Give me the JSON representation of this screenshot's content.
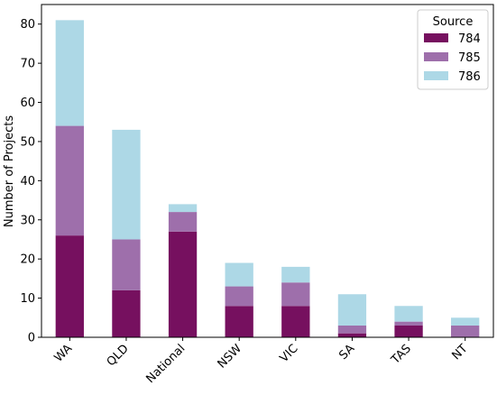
{
  "chart_data": {
    "type": "bar",
    "stacked": true,
    "categories": [
      "WA",
      "QLD",
      "National",
      "NSW",
      "VIC",
      "SA",
      "TAS",
      "NT"
    ],
    "series": [
      {
        "name": "784",
        "color": "#76105f",
        "values": [
          26,
          12,
          27,
          8,
          8,
          1,
          3,
          0
        ]
      },
      {
        "name": "785",
        "color": "#9e6fab",
        "values": [
          28,
          13,
          5,
          5,
          6,
          2,
          1,
          3
        ]
      },
      {
        "name": "786",
        "color": "#add8e6",
        "values": [
          27,
          28,
          2,
          6,
          4,
          8,
          4,
          2
        ]
      }
    ],
    "title": "",
    "xlabel": "",
    "ylabel": "Number of Projects",
    "ylim": [
      0,
      85
    ],
    "yticks": [
      0,
      10,
      20,
      30,
      40,
      50,
      60,
      70,
      80
    ],
    "legend_title": "Source",
    "legend_position": "top-right",
    "grid": false,
    "xtick_rotation": 45
  }
}
